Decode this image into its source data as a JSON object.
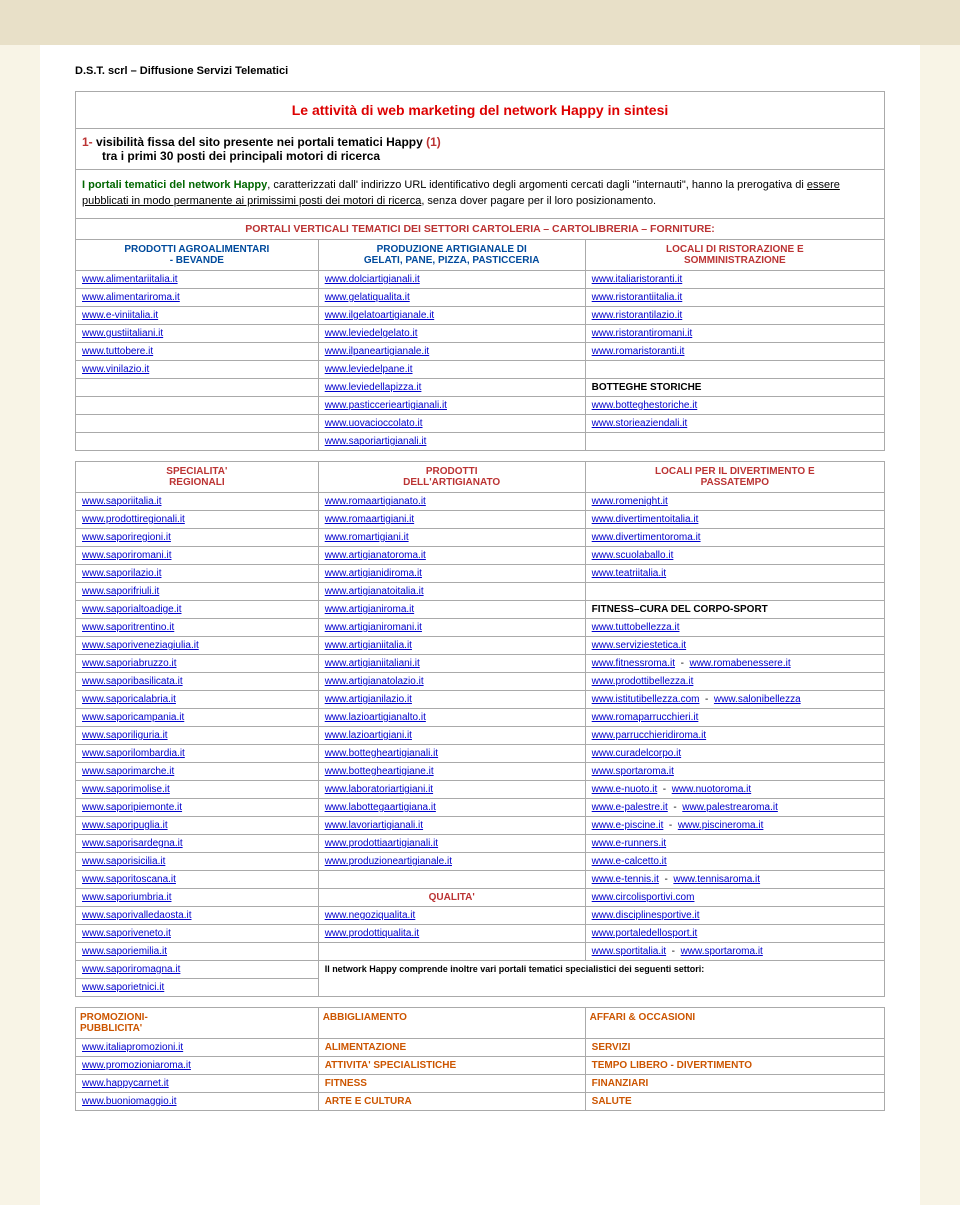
{
  "header": "D.S.T. scrl – Diffusione Servizi Telematici",
  "title": "Le attività di web marketing del network Happy in sintesi",
  "subtitle_num": "1-",
  "subtitle_main": "visibilità fissa del sito presente nei portali tematici Happy",
  "subtitle_tail": "(1)",
  "subtitle_line2": "tra i primi 30 posti dei principali motori di ricerca",
  "para_green": "I portali tematici del network Happy",
  "para_1": ", caratterizzati dall' indirizzo URL identificativo degli argomenti cercati dagli \"internauti\", hanno la prerogativa di ",
  "para_u1": "essere pubblicati in modo permanente ai primissimi posti dei motori di ricerca",
  "para_2": ", senza dover pagare per il loro posizionamento.",
  "section1_head": "PORTALI VERTICALI TEMATICI DEI SETTORI CARTOLERIA – CARTOLIBRERIA – FORNITURE:",
  "t1_head_c1a": "PRODOTTI AGROALIMENTARI",
  "t1_head_c1b": "- BEVANDE",
  "t1_head_c2a": "PRODUZIONE ARTIGIANALE DI",
  "t1_head_c2b": "GELATI, PANE, PIZZA, PASTICCERIA",
  "t1_head_c3a": "LOCALI DI RISTORAZIONE E",
  "t1_head_c3b": "SOMMINISTRAZIONE",
  "t1_rows": [
    [
      "www.alimentariitalia.it",
      "www.dolciartigianali.it",
      "www.italiaristoranti.it"
    ],
    [
      "www.alimentariroma.it",
      "www.gelatiqualita.it",
      "www.ristorantiitalia.it"
    ],
    [
      "www.e-viniitalia.it",
      "www.ilgelatoartigianale.it",
      "www.ristorantilazio.it"
    ],
    [
      "www.gustiitaliani.it",
      "www.leviedelgelato.it",
      "www.ristorantiromani.it"
    ],
    [
      "www.tuttobere.it",
      "www.ilpaneartigianale.it",
      "www.romaristoranti.it"
    ],
    [
      "www.vinilazio.it",
      "www.leviedelpane.it",
      ""
    ],
    [
      "",
      "www.leviedellapizza.it",
      "BOTTEGHE STORICHE"
    ],
    [
      "",
      "www.pasticcerieartigianali.it",
      "www.botteghestoriche.it"
    ],
    [
      "",
      "www.uovacioccolato.it",
      "www.storieaziendali.it"
    ],
    [
      "",
      "www.saporiartigianali.it",
      ""
    ]
  ],
  "t2_head_c1a": "SPECIALITA'",
  "t2_head_c1b": "REGIONALI",
  "t2_head_c2a": "PRODOTTI",
  "t2_head_c2b": "DELL'ARTIGIANATO",
  "t2_head_c3a": "LOCALI PER IL DIVERTIMENTO E",
  "t2_head_c3b": "PASSATEMPO",
  "t2_rows": [
    [
      "www.saporiitalia.it",
      "www.romaartigianato.it",
      "www.romenight.it"
    ],
    [
      "www.prodottiregionali.it",
      "www.romaartigiani.it",
      "www.divertimentoitalia.it"
    ],
    [
      "www.saporiregioni.it",
      "www.romartigiani.it",
      "www.divertimentoroma.it"
    ],
    [
      "www.saporiromani.it",
      "www.artigianatoroma.it",
      "www.scuolaballo.it"
    ],
    [
      "www.saporilazio.it",
      "www.artigianidiroma.it",
      "www.teatriitalia.it"
    ],
    [
      "www.saporifriuli.it",
      "www.artigianatoitalia.it",
      ""
    ]
  ],
  "t2_r7": [
    "www.saporialtoadige.it",
    "www.artigianiroma.it",
    "FITNESS–CURA DEL CORPO-SPORT"
  ],
  "t2_rows2": [
    [
      "www.saporitrentino.it",
      "www.artigianiromani.it",
      "www.tuttobellezza.it"
    ],
    [
      "www.saporiveneziagiulia.it",
      "www.artigianiitalia.it",
      "www.serviziestetica.it"
    ]
  ],
  "t2_r10": [
    "www.saporiabruzzo.it",
    "www.artigianiitaliani.it",
    "www.fitnessroma.it",
    "www.romabenessere.it"
  ],
  "t2_rows3": [
    [
      "www.saporibasilicata.it",
      "www.artigianatolazio.it",
      "www.prodottibellezza.it"
    ]
  ],
  "t2_r12": [
    "www.saporicalabria.it",
    "www.artigianilazio.it",
    "www.istitutibellezza.com",
    "www.salonibellezza"
  ],
  "t2_rows4": [
    [
      "www.saporicampania.it",
      "www.lazioartigianalto.it",
      "www.romaparrucchieri.it"
    ],
    [
      "www.saporiliguria.it",
      "www.lazioartigiani.it",
      "www.parrucchieridiroma.it"
    ],
    [
      "www.saporilombardia.it",
      "www.bottegheartigianali.it",
      "www.curadelcorpo.it"
    ],
    [
      "www.saporimarche.it",
      "www.bottegheartigiane.it",
      "www.sportaroma.it"
    ]
  ],
  "t2_r17": [
    "www.saporimolise.it",
    "www.laboratoriartigiani.it",
    "www.e-nuoto.it",
    "www.nuotoroma.it"
  ],
  "t2_r18": [
    "www.saporipiemonte.it",
    "www.labottegaartigiana.it",
    "www.e-palestre.it",
    "www.palestrearoma.it"
  ],
  "t2_r19": [
    "www.saporipuglia.it",
    "www.lavoriartigianali.it",
    "www.e-piscine.it",
    "www.piscineroma.it"
  ],
  "t2_rows5": [
    [
      "www.saporisardegna.it",
      "www.prodottiaartigianali.it",
      "www.e-runners.it"
    ],
    [
      "www.saporisicilia.it",
      "www.produzioneartigianale.it",
      "www.e-calcetto.it"
    ]
  ],
  "t2_r22": [
    "www.saporitoscana.it",
    "",
    "www.e-tennis.it",
    "www.tennisaroma.it"
  ],
  "t2_r23": [
    "www.saporiumbria.it",
    "QUALITA'",
    "www.circolisportivi.com"
  ],
  "t2_rows6": [
    [
      "www.saporivalledaosta.it",
      "www.negoziqualita.it",
      "www.disciplinesportive.it"
    ],
    [
      "www.saporiveneto.it",
      "www.prodottiqualita.it",
      "www.portaledellosport.it"
    ]
  ],
  "t2_r26": [
    "www.saporiemilia.it",
    "",
    "www.sportitalia.it",
    "www.sportaroma.it"
  ],
  "t2_r27_c1": "www.saporiromagna.it",
  "t2_r27_note": "Il network Happy comprende inoltre vari portali tematici specialistici dei seguenti settori:",
  "t2_r28_c1": "www.saporietnici.it",
  "t3_head_c1a": "PROMOZIONI-",
  "t3_head_c1b": "PUBBLICITA'",
  "t3_head_c2": "ABBIGLIAMENTO",
  "t3_head_c3": "AFFARI & OCCASIONI",
  "t3_rows": [
    [
      "www.italiapromozioni.it",
      "ALIMENTAZIONE",
      "SERVIZI"
    ],
    [
      "www.promozioniaroma.it",
      "ATTIVITA' SPECIALISTICHE",
      "TEMPO LIBERO -  DIVERTIMENTO"
    ],
    [
      "www.happycarnet.it",
      "FITNESS",
      "FINANZIARI"
    ],
    [
      "www.buoniomaggio.it",
      "ARTE E CULTURA",
      "SALUTE"
    ]
  ]
}
